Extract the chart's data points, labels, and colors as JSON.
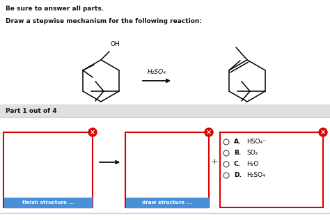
{
  "bg_color": "#ffffff",
  "header_text": "Be sure to answer all parts.",
  "subheader_text": "Draw a stepwise mechanism for the following reaction:",
  "reagent_text": "H₂SO₄",
  "part_label": "Part 1 out of 4",
  "part_bg": "#e0e0e0",
  "choices_letters": [
    "A.",
    "B.",
    "C.",
    "D."
  ],
  "choices_values": [
    "HSO₄⁻",
    "SO₂",
    "H₂O",
    "H₂SO₄"
  ],
  "finish_btn": "finish structure ...",
  "draw_btn": "draw structure ...",
  "btn_color": "#4a90d9",
  "btn_text_color": "#ffffff",
  "box_border": "#dd0000",
  "x_color": "#dd0000",
  "mol_line_color": "#555555",
  "separator_color": "#cccccc"
}
